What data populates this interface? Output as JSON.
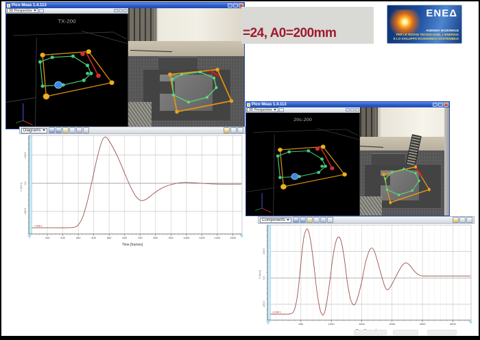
{
  "banner": {
    "text": "=24, A0=200mm"
  },
  "logo": {
    "brand": "ENEΔ",
    "line1": "AGENZIA NAZIONALE",
    "line2": "PER LE NUOVE TECNOLOGIE, L'ENERGIA",
    "line3": "E LO SVILUPPO ECONOMICO SOSTENIBILE"
  },
  "windows": [
    {
      "title": "Pico Meas 1.4.113",
      "toolbar_dropdown": "3D Perspective",
      "scene_label": "TX-200"
    },
    {
      "title": "Pico Meas 1.4.113",
      "toolbar_dropdown": "3D Perspective",
      "scene_label": "20c-200"
    }
  ],
  "scene": {
    "persp_lines": [
      [
        6,
        19,
        88,
        16
      ],
      [
        88,
        16,
        99,
        22
      ],
      [
        25,
        21,
        24,
        100
      ],
      [
        0,
        77,
        25,
        73
      ],
      [
        62,
        15,
        100,
        26
      ]
    ],
    "quad": [
      [
        30,
        36
      ],
      [
        68,
        33
      ],
      [
        87,
        60
      ],
      [
        33,
        72
      ]
    ],
    "red_edge": [
      66,
      34,
      76,
      54
    ],
    "green_poly": [
      [
        28,
        42
      ],
      [
        38,
        38
      ],
      [
        55,
        37
      ],
      [
        67,
        45
      ],
      [
        70,
        52
      ],
      [
        64,
        58
      ],
      [
        47,
        62
      ],
      [
        30,
        63
      ]
    ],
    "extra_green_dots": [
      [
        67,
        52
      ]
    ],
    "red_dots": [
      [
        63,
        35
      ],
      [
        76,
        54
      ]
    ],
    "blue_dot": [
      43,
      62
    ],
    "axis_blue": [
      14,
      78,
      14,
      93
    ],
    "axis_red": [
      14,
      93,
      22,
      97
    ],
    "axis_green": [
      14,
      93,
      8,
      95
    ]
  },
  "cam_overlays": [
    {
      "quad": [
        [
          36,
          55
        ],
        [
          77,
          51
        ],
        [
          89,
          77
        ],
        [
          42,
          86
        ]
      ],
      "green": [
        [
          38,
          59
        ],
        [
          46,
          55
        ],
        [
          62,
          53
        ],
        [
          74,
          58
        ],
        [
          76,
          66
        ],
        [
          68,
          74
        ],
        [
          52,
          78
        ],
        [
          39,
          72
        ]
      ],
      "red": [
        70,
        52,
        78,
        56
      ]
    },
    {
      "quad": [
        [
          28,
          62
        ],
        [
          66,
          55
        ],
        [
          82,
          76
        ],
        [
          36,
          88
        ]
      ],
      "green": [
        [
          30,
          66
        ],
        [
          38,
          60
        ],
        [
          52,
          57
        ],
        [
          66,
          61
        ],
        [
          70,
          68
        ],
        [
          62,
          77
        ],
        [
          46,
          81
        ],
        [
          32,
          76
        ]
      ],
      "red": [
        66,
        55,
        74,
        64
      ]
    }
  ],
  "chart_toolbars": [
    {
      "dropdown": "Diagrams",
      "icons": [
        {
          "name": "scale-vertical-icon",
          "color": "#6f94c8"
        },
        {
          "name": "scale-horizontal-icon",
          "color": "#6f94c8"
        },
        {
          "name": "zoom-fit-icon",
          "color": "#d9c15a"
        },
        {
          "name": "legend-icon",
          "color": "#b8c4d8"
        },
        {
          "name": "grid-icon",
          "color": "#9fb2cc"
        },
        {
          "name": "export-icon",
          "color": "#c0c8d4"
        }
      ],
      "right_icons": [
        {
          "name": "snapshot-icon",
          "color": "#e3b83e"
        },
        {
          "name": "tile-view-icon",
          "color": "#c3cbd8"
        },
        {
          "name": "detach-icon",
          "color": "#c3cbd8"
        }
      ]
    },
    {
      "dropdown": "Components",
      "icons": [
        {
          "name": "scale-vertical-icon",
          "color": "#6f94c8"
        },
        {
          "name": "scale-horizontal-icon",
          "color": "#6f94c8"
        },
        {
          "name": "zoom-fit-icon",
          "color": "#d9c15a"
        },
        {
          "name": "legend-icon",
          "color": "#b8c4d8"
        },
        {
          "name": "grid-icon",
          "color": "#9fb2cc"
        },
        {
          "name": "export-icon",
          "color": "#c0c8d4"
        }
      ],
      "right_icons": [
        {
          "name": "snapshot-icon",
          "color": "#e3b83e"
        },
        {
          "name": "tile-view-icon",
          "color": "#c3cbd8"
        },
        {
          "name": "detach-icon",
          "color": "#c3cbd8"
        }
      ]
    }
  ],
  "chart_data": [
    {
      "type": "line",
      "xlabel": "Time [frames]",
      "ylabel": "X [mm]",
      "xlim": [
        0,
        1360
      ],
      "ylim": [
        -180,
        170
      ],
      "x_ticks": [
        100,
        200,
        300,
        400,
        500,
        600,
        700,
        800,
        900,
        1000,
        1100,
        1200,
        1300
      ],
      "x_minor_tick": 25,
      "y_minor_tick": 20,
      "y_gridlines": [
        100,
        0,
        -100
      ],
      "y_tick_labels": [
        "100.0",
        "0.0",
        "-100.0"
      ],
      "marker_label": "-7.508 1",
      "legend_position": "none",
      "grid": true,
      "series": [
        {
          "name": "displacement",
          "color": "#9c4f4f",
          "points": [
            [
              0,
              -158
            ],
            [
              120,
              -158
            ],
            [
              240,
              -158
            ],
            [
              275,
              -156
            ],
            [
              300,
              -148
            ],
            [
              330,
              -118
            ],
            [
              360,
              -62
            ],
            [
              390,
              10
            ],
            [
              420,
              85
            ],
            [
              450,
              145
            ],
            [
              470,
              164
            ],
            [
              490,
              158
            ],
            [
              520,
              132
            ],
            [
              560,
              88
            ],
            [
              600,
              36
            ],
            [
              640,
              -14
            ],
            [
              675,
              -48
            ],
            [
              705,
              -61
            ],
            [
              735,
              -58
            ],
            [
              775,
              -42
            ],
            [
              820,
              -24
            ],
            [
              870,
              -10
            ],
            [
              930,
              -1
            ],
            [
              985,
              3
            ],
            [
              1040,
              2
            ],
            [
              1100,
              0
            ],
            [
              1160,
              -2
            ],
            [
              1250,
              -3
            ],
            [
              1355,
              -3
            ]
          ]
        }
      ]
    },
    {
      "type": "line",
      "xlabel": "Time [frames]",
      "ylabel": "X [mm]",
      "xlim": [
        0,
        3300
      ],
      "ylim": [
        -160,
        200
      ],
      "x_ticks": [
        500,
        1000,
        1500,
        2000,
        2500,
        3000
      ],
      "x_minor_tick": 100,
      "x_minor_grid": 100,
      "y_minor_tick": 20,
      "y_gridlines": [
        100,
        0,
        -100
      ],
      "y_tick_labels": [
        "100.0",
        "0.0",
        "-100.0"
      ],
      "marker_label": "-0.098 1",
      "legend_position": "none",
      "grid": true,
      "series": [
        {
          "name": "displacement",
          "color": "#9c4f4f",
          "points": [
            [
              0,
              -137
            ],
            [
              200,
              -137
            ],
            [
              330,
              -136
            ],
            [
              385,
              -125
            ],
            [
              430,
              -85
            ],
            [
              470,
              -15
            ],
            [
              510,
              80
            ],
            [
              550,
              155
            ],
            [
              590,
              183
            ],
            [
              620,
              180
            ],
            [
              660,
              140
            ],
            [
              710,
              55
            ],
            [
              760,
              -45
            ],
            [
              810,
              -115
            ],
            [
              855,
              -140
            ],
            [
              890,
              -130
            ],
            [
              930,
              -85
            ],
            [
              980,
              -5
            ],
            [
              1030,
              85
            ],
            [
              1080,
              140
            ],
            [
              1120,
              155
            ],
            [
              1160,
              140
            ],
            [
              1210,
              80
            ],
            [
              1260,
              -10
            ],
            [
              1310,
              -75
            ],
            [
              1355,
              -100
            ],
            [
              1395,
              -98
            ],
            [
              1440,
              -70
            ],
            [
              1500,
              -15
            ],
            [
              1560,
              55
            ],
            [
              1620,
              100
            ],
            [
              1665,
              113
            ],
            [
              1710,
              100
            ],
            [
              1770,
              55
            ],
            [
              1830,
              5
            ],
            [
              1885,
              -35
            ],
            [
              1925,
              -45
            ],
            [
              1970,
              -35
            ],
            [
              2030,
              -10
            ],
            [
              2100,
              22
            ],
            [
              2170,
              48
            ],
            [
              2230,
              57
            ],
            [
              2290,
              48
            ],
            [
              2350,
              30
            ],
            [
              2420,
              14
            ],
            [
              2490,
              8
            ],
            [
              2600,
              7
            ],
            [
              2800,
              7
            ],
            [
              3050,
              7
            ],
            [
              3290,
              7
            ]
          ]
        }
      ]
    }
  ]
}
